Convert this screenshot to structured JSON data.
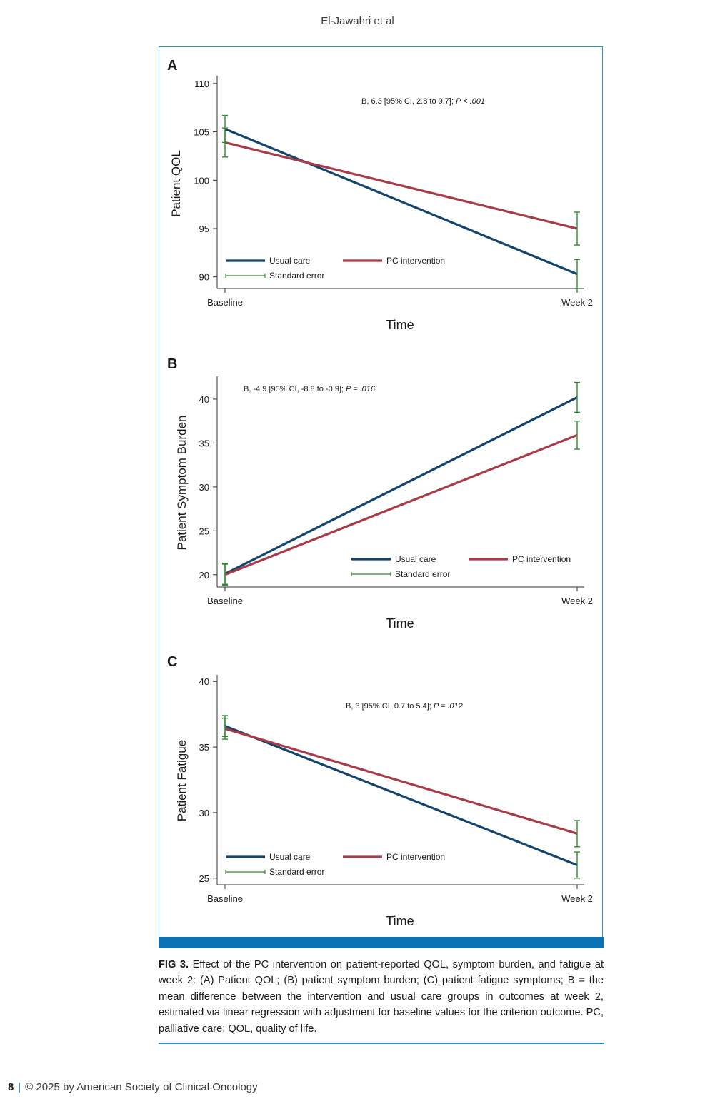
{
  "running_head": "El-Jawahri et al",
  "legend_labels": {
    "usual_care": "Usual care",
    "pc_intervention": "PC intervention",
    "standard_error": "Standard error"
  },
  "colors": {
    "usual_care": "#13456f",
    "pc_intervention": "#a83b47",
    "standard_error": "#2f8a2f",
    "frame": "#2e8fc4",
    "frame_bar": "#0a72b3"
  },
  "chart_data": [
    {
      "type": "line",
      "panel": "A",
      "ylabel": "Patient QOL",
      "xlabel": "Time",
      "categories": [
        "Baseline",
        "Week 2"
      ],
      "yticks": [
        90,
        95,
        100,
        105,
        110
      ],
      "ylim": [
        88.8,
        110.8
      ],
      "annotation": "B, 6.3 [95% CI, 2.8 to 9.7]; ",
      "annotation_p": "P < .001",
      "legend_position": "bottom",
      "series": [
        {
          "name": "Usual care",
          "color": "#13456f",
          "values": [
            105.3,
            90.3
          ],
          "se": [
            [
              103.9,
              106.7
            ],
            [
              88.8,
              91.8
            ]
          ]
        },
        {
          "name": "PC intervention",
          "color": "#a83b47",
          "values": [
            103.9,
            95.0
          ],
          "se": [
            [
              102.4,
              105.4
            ],
            [
              93.3,
              96.7
            ]
          ]
        }
      ]
    },
    {
      "type": "line",
      "panel": "B",
      "ylabel": "Patient Symptom Burden",
      "xlabel": "Time",
      "categories": [
        "Baseline",
        "Week 2"
      ],
      "yticks": [
        20,
        25,
        30,
        35,
        40
      ],
      "ylim": [
        18.6,
        42.6
      ],
      "annotation": "B, -4.9 [95% CI, -8.8 to -0.9]; ",
      "annotation_p": "P = .016",
      "legend_position": "bottom-right",
      "series": [
        {
          "name": "Usual care",
          "color": "#13456f",
          "values": [
            20.1,
            40.2
          ],
          "se": [
            [
              18.9,
              21.3
            ],
            [
              38.5,
              41.9
            ]
          ]
        },
        {
          "name": "PC intervention",
          "color": "#a83b47",
          "values": [
            20.0,
            35.9
          ],
          "se": [
            [
              18.8,
              21.2
            ],
            [
              34.3,
              37.5
            ]
          ]
        }
      ]
    },
    {
      "type": "line",
      "panel": "C",
      "ylabel": "Patient Fatigue",
      "xlabel": "Time",
      "categories": [
        "Baseline",
        "Week 2"
      ],
      "yticks": [
        25,
        30,
        35,
        40
      ],
      "ylim": [
        24.5,
        40.5
      ],
      "annotation": "B, 3 [95% CI, 0.7 to 5.4]; ",
      "annotation_p": "P = .012",
      "legend_position": "bottom",
      "series": [
        {
          "name": "Usual care",
          "color": "#13456f",
          "values": [
            36.6,
            26.0
          ],
          "se": [
            [
              35.8,
              37.4
            ],
            [
              25.0,
              27.0
            ]
          ]
        },
        {
          "name": "PC intervention",
          "color": "#a83b47",
          "values": [
            36.4,
            28.4
          ],
          "se": [
            [
              35.6,
              37.2
            ],
            [
              27.4,
              29.4
            ]
          ]
        }
      ]
    }
  ],
  "caption": {
    "label": "FIG 3.",
    "text": " Effect of the PC intervention on patient-reported QOL, symptom burden, and fatigue at week 2: (A) Patient QOL; (B) patient symptom burden; (C) patient fatigue symptoms; B = the mean difference between the intervention and usual care groups in outcomes at week 2, estimated via linear regression with adjustment for baseline values for the criterion outcome. PC, palliative care; QOL, quality of life."
  },
  "footer": {
    "page_number": "8",
    "separator": "|",
    "copyright": "© 2025 by American Society of Clinical Oncology"
  }
}
